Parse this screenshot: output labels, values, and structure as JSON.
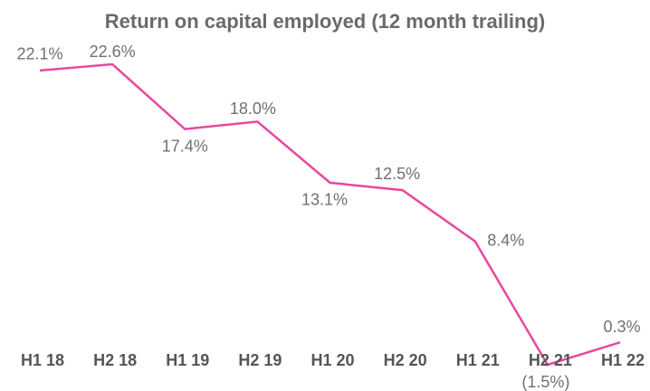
{
  "chart_data": {
    "type": "line",
    "title": "Return on capital employed (12 month trailing)",
    "categories": [
      "H1 18",
      "H2 18",
      "H1 19",
      "H2 19",
      "H1 20",
      "H2 20",
      "H1 21",
      "H2 21",
      "H1 22"
    ],
    "values": [
      22.1,
      22.6,
      17.4,
      18.0,
      13.1,
      12.5,
      8.4,
      -1.5,
      0.3
    ],
    "value_labels": [
      "22.1%",
      "22.6%",
      "17.4%",
      "18.0%",
      "13.1%",
      "12.5%",
      "8.4%",
      "(1.5%)",
      "0.3%"
    ],
    "color": "#e8489e"
  }
}
